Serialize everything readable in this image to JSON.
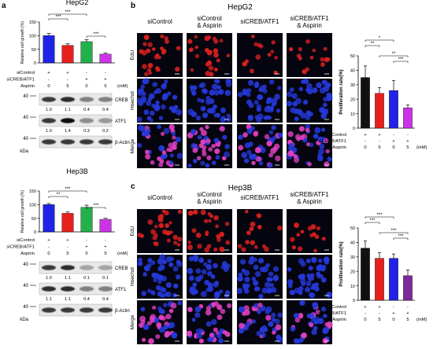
{
  "panel_letters": {
    "a": "a",
    "b": "b",
    "c": "c"
  },
  "units": {
    "kda": "kDa",
    "mM": "(mM)"
  },
  "row_labels": {
    "sicontrol": "siControl",
    "sicreb": "siCREB/ATF1",
    "aspirin": "Aspirin"
  },
  "channels": [
    "EdU",
    "Hoechst",
    "Merge"
  ],
  "condition_labels": {
    "c1": [
      "siControl"
    ],
    "c2": [
      "siControl",
      "& Aspirin"
    ],
    "c3": [
      "siCREB/ATF1"
    ],
    "c4": [
      "siCREB/ATF1",
      "& Aspirin"
    ]
  },
  "colors": {
    "c1": "#1f23e6",
    "c2": "#e8201c",
    "c3": "#22b04a",
    "c4": "#cc33e6",
    "c4c": "#7a2a9a",
    "edu": "#d8201e",
    "hoechst": "#2538d8",
    "merge": "#e040c0"
  },
  "signs": {
    "sicontrol": [
      "+",
      "+",
      "-",
      "-"
    ],
    "sicreb": [
      "-",
      "-",
      "+",
      "+"
    ],
    "aspirin": [
      "0",
      "5",
      "0",
      "5"
    ]
  },
  "chart_data": [
    {
      "type": "bar",
      "panel": "a-top",
      "title": "HepG2",
      "ylabel": "Relative cell growth (%)",
      "yticks": [
        "0",
        "50",
        "100",
        "150"
      ],
      "ylim": [
        0,
        150
      ],
      "values": [
        100,
        64,
        78,
        32
      ],
      "errors": [
        8,
        6,
        7,
        4
      ],
      "sig": [
        "***",
        "***",
        "***"
      ]
    },
    {
      "type": "bar",
      "panel": "a-bottom",
      "title": "Hep3B",
      "ylabel": "Relative cell growth (%)",
      "yticks": [
        "0",
        "50",
        "100",
        "150"
      ],
      "ylim": [
        0,
        150
      ],
      "values": [
        100,
        68,
        90,
        46
      ],
      "errors": [
        4,
        5,
        8,
        4
      ],
      "sig": [
        "**",
        "***",
        "***"
      ]
    },
    {
      "type": "bar",
      "panel": "b",
      "ylabel": "Proliferation rate(%)",
      "yticks": [
        "0",
        "10",
        "20",
        "30",
        "40",
        "50"
      ],
      "ylim": [
        0,
        50
      ],
      "values": [
        35,
        24,
        26,
        14
      ],
      "errors": [
        8,
        4,
        7,
        2
      ],
      "sig": [
        "*",
        "**",
        "**",
        "***"
      ]
    },
    {
      "type": "bar",
      "panel": "c",
      "ylabel": "Proliferation rate(%)",
      "yticks": [
        "0",
        "10",
        "20",
        "30",
        "40",
        "50"
      ],
      "ylim": [
        0,
        50
      ],
      "values": [
        36,
        29,
        29,
        17
      ],
      "errors": [
        5,
        4,
        3,
        4
      ],
      "sig": [
        "***",
        "***",
        "***",
        "***"
      ]
    }
  ],
  "blots": {
    "hepg2": [
      {
        "protein": "CREB",
        "mw": "40",
        "values": [
          "1.0",
          "1.1",
          "0.4",
          "0.4"
        ]
      },
      {
        "protein": "ATF1",
        "mw": "40",
        "values": [
          "1.0",
          "1.4",
          "0.3",
          "0.2"
        ]
      },
      {
        "protein": "β-Actin",
        "mw": "40",
        "values": []
      }
    ],
    "hep3b": [
      {
        "protein": "CREB",
        "mw": "40",
        "values": [
          "1.0",
          "1.1",
          "0.1",
          "0.1"
        ]
      },
      {
        "protein": "ATF1",
        "mw": "40",
        "values": [
          "1.1",
          "1.1",
          "0.4",
          "0.4"
        ]
      },
      {
        "protein": "β-Actin",
        "mw": "40",
        "values": []
      }
    ]
  },
  "titles": {
    "b": "HepG2",
    "c": "Hep3B"
  }
}
